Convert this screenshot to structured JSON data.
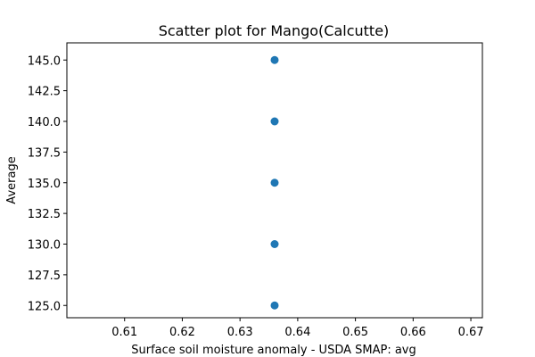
{
  "chart_data": {
    "type": "scatter",
    "title": "Scatter plot for Mango(Calcutte)",
    "xlabel": "Surface soil moisture anomaly  - USDA SMAP: avg",
    "ylabel": "Average",
    "xlim": [
      0.6,
      0.672
    ],
    "ylim": [
      124,
      146.4
    ],
    "x_ticks": [
      "0.61",
      "0.62",
      "0.63",
      "0.64",
      "0.65",
      "0.66",
      "0.67"
    ],
    "y_ticks": [
      "125.0",
      "127.5",
      "130.0",
      "132.5",
      "135.0",
      "137.5",
      "140.0",
      "142.5",
      "145.0"
    ],
    "grid": false,
    "point_color": "#1f77b4",
    "points": [
      {
        "x": 0.636,
        "y": 125.0
      },
      {
        "x": 0.636,
        "y": 130.0
      },
      {
        "x": 0.636,
        "y": 135.0
      },
      {
        "x": 0.636,
        "y": 140.0
      },
      {
        "x": 0.636,
        "y": 145.0
      }
    ]
  }
}
